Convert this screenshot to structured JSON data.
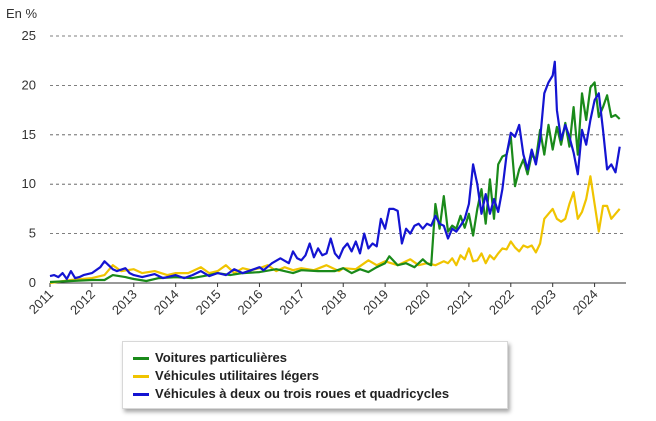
{
  "chart_data": {
    "type": "line",
    "unit_label": "En %",
    "ylim": [
      0,
      25
    ],
    "yticks": [
      0,
      5,
      10,
      15,
      20,
      25
    ],
    "xlim": [
      2011.0,
      2024.75
    ],
    "xticks": [
      "2011",
      "2012",
      "2013",
      "2014",
      "2015",
      "2016",
      "2017",
      "2018",
      "2019",
      "2020",
      "2021",
      "2022",
      "2023",
      "2024"
    ],
    "grid": true,
    "legend_position": "bottom-left",
    "series": [
      {
        "name": "Voitures particulières",
        "color": "#1a8a1a",
        "points": [
          [
            2011.0,
            0.1
          ],
          [
            2011.5,
            0.2
          ],
          [
            2012.0,
            0.3
          ],
          [
            2012.3,
            0.3
          ],
          [
            2012.5,
            0.8
          ],
          [
            2012.8,
            0.6
          ],
          [
            2013.0,
            0.4
          ],
          [
            2013.3,
            0.2
          ],
          [
            2013.6,
            0.5
          ],
          [
            2014.0,
            0.6
          ],
          [
            2014.4,
            0.5
          ],
          [
            2014.8,
            0.8
          ],
          [
            2015.0,
            1.0
          ],
          [
            2015.3,
            0.8
          ],
          [
            2015.6,
            1.0
          ],
          [
            2016.0,
            1.1
          ],
          [
            2016.4,
            1.4
          ],
          [
            2016.8,
            1.0
          ],
          [
            2017.0,
            1.3
          ],
          [
            2017.4,
            1.2
          ],
          [
            2017.8,
            1.2
          ],
          [
            2018.0,
            1.5
          ],
          [
            2018.2,
            1.0
          ],
          [
            2018.4,
            1.4
          ],
          [
            2018.6,
            1.1
          ],
          [
            2018.8,
            1.6
          ],
          [
            2019.0,
            2.0
          ],
          [
            2019.1,
            2.7
          ],
          [
            2019.3,
            1.8
          ],
          [
            2019.5,
            2.0
          ],
          [
            2019.7,
            1.6
          ],
          [
            2019.9,
            2.4
          ],
          [
            2020.0,
            2.0
          ],
          [
            2020.1,
            1.8
          ],
          [
            2020.2,
            8.0
          ],
          [
            2020.3,
            5.5
          ],
          [
            2020.4,
            8.8
          ],
          [
            2020.5,
            5.2
          ],
          [
            2020.6,
            5.8
          ],
          [
            2020.7,
            5.5
          ],
          [
            2020.8,
            6.8
          ],
          [
            2020.9,
            5.6
          ],
          [
            2021.0,
            7.0
          ],
          [
            2021.1,
            4.8
          ],
          [
            2021.2,
            7.5
          ],
          [
            2021.3,
            9.5
          ],
          [
            2021.4,
            6.0
          ],
          [
            2021.5,
            10.5
          ],
          [
            2021.6,
            6.5
          ],
          [
            2021.7,
            12.0
          ],
          [
            2021.8,
            12.8
          ],
          [
            2021.9,
            13.0
          ],
          [
            2022.0,
            14.8
          ],
          [
            2022.1,
            9.8
          ],
          [
            2022.2,
            11.5
          ],
          [
            2022.3,
            12.5
          ],
          [
            2022.4,
            11.0
          ],
          [
            2022.5,
            13.0
          ],
          [
            2022.6,
            12.5
          ],
          [
            2022.7,
            15.5
          ],
          [
            2022.8,
            13.0
          ],
          [
            2022.9,
            16.0
          ],
          [
            2023.0,
            13.5
          ],
          [
            2023.1,
            15.8
          ],
          [
            2023.2,
            14.0
          ],
          [
            2023.3,
            16.2
          ],
          [
            2023.4,
            13.8
          ],
          [
            2023.5,
            17.8
          ],
          [
            2023.6,
            13.0
          ],
          [
            2023.7,
            19.2
          ],
          [
            2023.8,
            16.5
          ],
          [
            2023.9,
            19.8
          ],
          [
            2024.0,
            20.3
          ],
          [
            2024.1,
            16.8
          ],
          [
            2024.2,
            17.8
          ],
          [
            2024.3,
            19.0
          ],
          [
            2024.4,
            16.8
          ],
          [
            2024.5,
            17.0
          ],
          [
            2024.6,
            16.6
          ]
        ]
      },
      {
        "name": "Véhicules utilitaires légers",
        "color": "#f0c400",
        "points": [
          [
            2011.0,
            0.0
          ],
          [
            2011.5,
            0.3
          ],
          [
            2012.0,
            0.5
          ],
          [
            2012.3,
            0.8
          ],
          [
            2012.5,
            1.8
          ],
          [
            2012.7,
            1.2
          ],
          [
            2013.0,
            1.4
          ],
          [
            2013.2,
            1.0
          ],
          [
            2013.5,
            1.2
          ],
          [
            2013.8,
            0.8
          ],
          [
            2014.0,
            1.0
          ],
          [
            2014.3,
            1.0
          ],
          [
            2014.6,
            1.6
          ],
          [
            2014.8,
            1.0
          ],
          [
            2015.0,
            1.2
          ],
          [
            2015.2,
            1.8
          ],
          [
            2015.4,
            1.0
          ],
          [
            2015.6,
            1.5
          ],
          [
            2015.8,
            1.3
          ],
          [
            2016.0,
            1.5
          ],
          [
            2016.2,
            1.8
          ],
          [
            2016.4,
            1.2
          ],
          [
            2016.6,
            1.6
          ],
          [
            2016.8,
            1.3
          ],
          [
            2017.0,
            1.5
          ],
          [
            2017.3,
            1.3
          ],
          [
            2017.6,
            1.8
          ],
          [
            2017.9,
            1.2
          ],
          [
            2018.0,
            1.5
          ],
          [
            2018.3,
            1.4
          ],
          [
            2018.6,
            2.3
          ],
          [
            2018.8,
            1.8
          ],
          [
            2019.0,
            2.2
          ],
          [
            2019.3,
            1.8
          ],
          [
            2019.6,
            2.4
          ],
          [
            2019.8,
            1.8
          ],
          [
            2020.0,
            2.0
          ],
          [
            2020.2,
            1.8
          ],
          [
            2020.4,
            2.2
          ],
          [
            2020.5,
            2.0
          ],
          [
            2020.6,
            2.5
          ],
          [
            2020.7,
            1.8
          ],
          [
            2020.8,
            2.8
          ],
          [
            2020.9,
            2.4
          ],
          [
            2021.0,
            3.5
          ],
          [
            2021.1,
            2.2
          ],
          [
            2021.2,
            2.3
          ],
          [
            2021.3,
            3.0
          ],
          [
            2021.4,
            2.0
          ],
          [
            2021.5,
            2.8
          ],
          [
            2021.6,
            2.4
          ],
          [
            2021.7,
            3.0
          ],
          [
            2021.8,
            3.5
          ],
          [
            2021.9,
            3.4
          ],
          [
            2022.0,
            4.2
          ],
          [
            2022.1,
            3.6
          ],
          [
            2022.2,
            3.2
          ],
          [
            2022.3,
            3.8
          ],
          [
            2022.4,
            3.6
          ],
          [
            2022.5,
            3.8
          ],
          [
            2022.6,
            3.1
          ],
          [
            2022.7,
            4.0
          ],
          [
            2022.8,
            6.5
          ],
          [
            2022.9,
            7.0
          ],
          [
            2023.0,
            7.5
          ],
          [
            2023.1,
            6.5
          ],
          [
            2023.2,
            6.2
          ],
          [
            2023.3,
            6.5
          ],
          [
            2023.4,
            8.0
          ],
          [
            2023.5,
            9.2
          ],
          [
            2023.6,
            6.5
          ],
          [
            2023.7,
            7.2
          ],
          [
            2023.8,
            8.5
          ],
          [
            2023.9,
            10.8
          ],
          [
            2024.0,
            8.0
          ],
          [
            2024.1,
            5.2
          ],
          [
            2024.2,
            7.8
          ],
          [
            2024.3,
            7.8
          ],
          [
            2024.4,
            6.5
          ],
          [
            2024.5,
            7.0
          ],
          [
            2024.6,
            7.5
          ]
        ]
      },
      {
        "name": "Véhicules à deux ou trois roues et quadricycles",
        "color": "#1414d2",
        "points": [
          [
            2011.0,
            0.7
          ],
          [
            2011.1,
            0.8
          ],
          [
            2011.2,
            0.6
          ],
          [
            2011.3,
            1.0
          ],
          [
            2011.4,
            0.4
          ],
          [
            2011.5,
            1.2
          ],
          [
            2011.6,
            0.5
          ],
          [
            2011.7,
            0.6
          ],
          [
            2011.8,
            0.8
          ],
          [
            2012.0,
            1.0
          ],
          [
            2012.2,
            1.6
          ],
          [
            2012.3,
            2.2
          ],
          [
            2012.4,
            1.8
          ],
          [
            2012.5,
            1.4
          ],
          [
            2012.6,
            1.2
          ],
          [
            2012.8,
            1.5
          ],
          [
            2012.9,
            1.0
          ],
          [
            2013.0,
            0.8
          ],
          [
            2013.2,
            0.6
          ],
          [
            2013.5,
            0.9
          ],
          [
            2013.7,
            0.5
          ],
          [
            2014.0,
            0.8
          ],
          [
            2014.2,
            0.5
          ],
          [
            2014.4,
            0.8
          ],
          [
            2014.6,
            1.2
          ],
          [
            2014.8,
            0.7
          ],
          [
            2015.0,
            1.0
          ],
          [
            2015.2,
            0.8
          ],
          [
            2015.4,
            1.4
          ],
          [
            2015.6,
            1.0
          ],
          [
            2015.8,
            1.3
          ],
          [
            2016.0,
            1.6
          ],
          [
            2016.1,
            1.3
          ],
          [
            2016.3,
            2.0
          ],
          [
            2016.5,
            2.5
          ],
          [
            2016.7,
            2.0
          ],
          [
            2016.8,
            3.2
          ],
          [
            2016.9,
            2.5
          ],
          [
            2017.0,
            2.3
          ],
          [
            2017.1,
            2.8
          ],
          [
            2017.2,
            4.0
          ],
          [
            2017.3,
            2.6
          ],
          [
            2017.4,
            3.5
          ],
          [
            2017.5,
            2.8
          ],
          [
            2017.6,
            3.0
          ],
          [
            2017.7,
            4.5
          ],
          [
            2017.8,
            3.0
          ],
          [
            2017.9,
            2.5
          ],
          [
            2018.0,
            3.5
          ],
          [
            2018.1,
            4.0
          ],
          [
            2018.2,
            3.2
          ],
          [
            2018.3,
            4.2
          ],
          [
            2018.4,
            3.0
          ],
          [
            2018.5,
            5.0
          ],
          [
            2018.6,
            3.5
          ],
          [
            2018.7,
            4.0
          ],
          [
            2018.8,
            3.7
          ],
          [
            2018.9,
            6.5
          ],
          [
            2019.0,
            5.5
          ],
          [
            2019.1,
            7.5
          ],
          [
            2019.2,
            7.5
          ],
          [
            2019.3,
            7.3
          ],
          [
            2019.4,
            4.0
          ],
          [
            2019.5,
            5.5
          ],
          [
            2019.6,
            5.0
          ],
          [
            2019.7,
            5.8
          ],
          [
            2019.8,
            6.0
          ],
          [
            2019.9,
            5.5
          ],
          [
            2020.0,
            6.0
          ],
          [
            2020.1,
            5.8
          ],
          [
            2020.2,
            6.8
          ],
          [
            2020.3,
            6.0
          ],
          [
            2020.4,
            5.8
          ],
          [
            2020.5,
            4.5
          ],
          [
            2020.6,
            5.5
          ],
          [
            2020.7,
            5.2
          ],
          [
            2020.8,
            5.8
          ],
          [
            2020.9,
            6.5
          ],
          [
            2021.0,
            8.0
          ],
          [
            2021.1,
            12.0
          ],
          [
            2021.2,
            10.0
          ],
          [
            2021.3,
            7.0
          ],
          [
            2021.4,
            9.0
          ],
          [
            2021.5,
            7.0
          ],
          [
            2021.6,
            8.5
          ],
          [
            2021.7,
            7.2
          ],
          [
            2021.8,
            9.5
          ],
          [
            2021.9,
            13.0
          ],
          [
            2022.0,
            15.2
          ],
          [
            2022.1,
            14.8
          ],
          [
            2022.2,
            16.0
          ],
          [
            2022.3,
            13.0
          ],
          [
            2022.4,
            11.5
          ],
          [
            2022.5,
            13.5
          ],
          [
            2022.6,
            12.0
          ],
          [
            2022.7,
            14.5
          ],
          [
            2022.8,
            19.2
          ],
          [
            2022.9,
            20.3
          ],
          [
            2023.0,
            21.0
          ],
          [
            2023.05,
            22.4
          ],
          [
            2023.1,
            17.5
          ],
          [
            2023.2,
            14.5
          ],
          [
            2023.3,
            16.0
          ],
          [
            2023.4,
            14.8
          ],
          [
            2023.5,
            13.2
          ],
          [
            2023.6,
            11.0
          ],
          [
            2023.7,
            15.5
          ],
          [
            2023.8,
            14.0
          ],
          [
            2023.9,
            16.5
          ],
          [
            2024.0,
            18.5
          ],
          [
            2024.1,
            19.2
          ],
          [
            2024.2,
            15.5
          ],
          [
            2024.3,
            11.5
          ],
          [
            2024.4,
            12.0
          ],
          [
            2024.5,
            11.2
          ],
          [
            2024.6,
            13.8
          ]
        ]
      }
    ]
  }
}
